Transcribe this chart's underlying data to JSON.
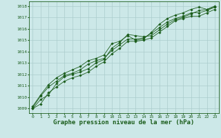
{
  "title": "Graphe pression niveau de la mer (hPa)",
  "background_color": "#cce8e8",
  "grid_color": "#aacccc",
  "line_color": "#1a5c1a",
  "x_hours": [
    0,
    1,
    2,
    3,
    4,
    5,
    6,
    7,
    8,
    9,
    10,
    11,
    12,
    13,
    14,
    15,
    16,
    17,
    18,
    19,
    20,
    21,
    22,
    23
  ],
  "series": [
    [
      1009.0,
      1009.8,
      1010.2,
      1011.2,
      1011.8,
      1012.0,
      1012.2,
      1012.5,
      1013.0,
      1013.3,
      1014.3,
      1014.8,
      1015.5,
      1015.4,
      1015.3,
      1015.4,
      1015.9,
      1016.4,
      1016.8,
      1017.0,
      1017.3,
      1017.6,
      1017.7,
      1017.9
    ],
    [
      1009.1,
      1010.1,
      1010.9,
      1011.4,
      1011.9,
      1012.1,
      1012.4,
      1012.9,
      1013.2,
      1013.4,
      1014.1,
      1014.6,
      1015.1,
      1015.1,
      1015.2,
      1015.6,
      1016.1,
      1016.6,
      1016.9,
      1017.1,
      1017.4,
      1017.4,
      1017.6,
      1017.9
    ],
    [
      1009.0,
      1009.4,
      1010.4,
      1010.9,
      1011.4,
      1011.7,
      1011.9,
      1012.2,
      1012.7,
      1013.1,
      1013.8,
      1014.3,
      1014.9,
      1014.9,
      1015.0,
      1015.2,
      1015.7,
      1016.2,
      1016.7,
      1016.9,
      1017.1,
      1017.1,
      1017.4,
      1017.7
    ],
    [
      1009.2,
      1010.2,
      1011.1,
      1011.7,
      1012.1,
      1012.4,
      1012.7,
      1013.2,
      1013.4,
      1013.7,
      1014.7,
      1014.9,
      1015.4,
      1015.0,
      1015.1,
      1015.7,
      1016.4,
      1016.9,
      1017.2,
      1017.4,
      1017.7,
      1017.9,
      1017.7,
      1018.0
    ]
  ],
  "ylim": [
    1008.6,
    1018.4
  ],
  "yticks": [
    1009,
    1010,
    1011,
    1012,
    1013,
    1014,
    1015,
    1016,
    1017,
    1018
  ],
  "xlim": [
    -0.5,
    23.5
  ],
  "xticks": [
    0,
    1,
    2,
    3,
    4,
    5,
    6,
    7,
    8,
    9,
    10,
    11,
    12,
    13,
    14,
    15,
    16,
    17,
    18,
    19,
    20,
    21,
    22,
    23
  ],
  "tick_fontsize": 4.5,
  "tick_color": "#1a5c1a",
  "label_fontsize": 6.5,
  "line_width": 0.6,
  "marker_size": 1.8
}
